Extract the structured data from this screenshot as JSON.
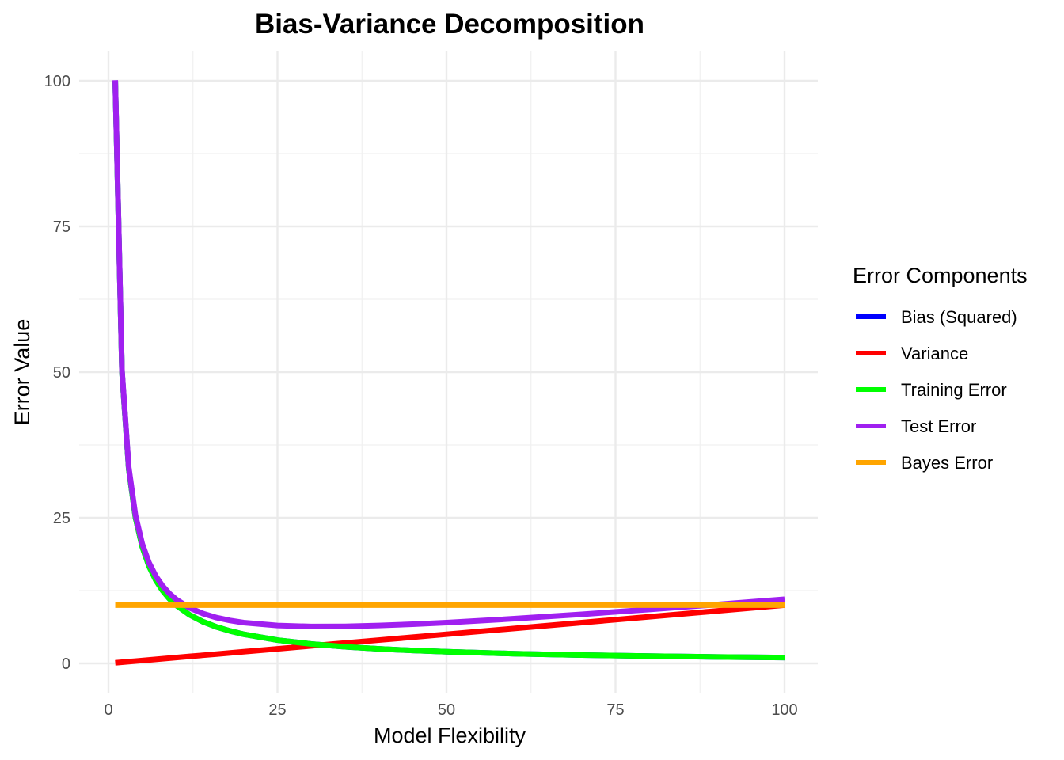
{
  "chart_data": {
    "type": "line",
    "title": "Bias-Variance Decomposition",
    "xlabel": "Model Flexibility",
    "ylabel": "Error Value",
    "xlim": [
      0,
      100
    ],
    "ylim": [
      0,
      100
    ],
    "x_ticks": [
      0,
      25,
      50,
      75,
      100
    ],
    "y_ticks": [
      0,
      25,
      50,
      75,
      100
    ],
    "grid": true,
    "legend": {
      "title": "Error Components",
      "placement": "right"
    },
    "x": [
      1,
      2,
      3,
      4,
      5,
      6,
      7,
      8,
      9,
      10,
      12,
      14,
      16,
      18,
      20,
      25,
      30,
      35,
      40,
      45,
      50,
      60,
      70,
      80,
      90,
      100
    ],
    "series": [
      {
        "name": "Bias (Squared)",
        "color": "#0000ff",
        "values": [
          100,
          50,
          33.33,
          25,
          20,
          16.67,
          14.29,
          12.5,
          11.11,
          10,
          8.33,
          7.14,
          6.25,
          5.56,
          5,
          4,
          3.33,
          2.86,
          2.5,
          2.22,
          2,
          1.67,
          1.43,
          1.25,
          1.11,
          1
        ]
      },
      {
        "name": "Variance",
        "color": "#ff0000",
        "values": [
          0.1,
          0.2,
          0.3,
          0.4,
          0.5,
          0.6,
          0.7,
          0.8,
          0.9,
          1,
          1.2,
          1.4,
          1.6,
          1.8,
          2,
          2.5,
          3,
          3.5,
          4,
          4.5,
          5,
          6,
          7,
          8,
          9,
          10
        ]
      },
      {
        "name": "Training Error",
        "color": "#00ff00",
        "values": [
          100,
          50,
          33.33,
          25,
          20,
          16.67,
          14.29,
          12.5,
          11.11,
          10,
          8.33,
          7.14,
          6.25,
          5.56,
          5,
          4,
          3.33,
          2.86,
          2.5,
          2.22,
          2,
          1.67,
          1.43,
          1.25,
          1.11,
          1
        ]
      },
      {
        "name": "Test Error",
        "color": "#a020f0",
        "values": [
          100.1,
          50.2,
          33.63,
          25.4,
          20.5,
          17.27,
          14.99,
          13.3,
          12.01,
          11,
          9.53,
          8.54,
          7.85,
          7.36,
          7,
          6.5,
          6.33,
          6.36,
          6.5,
          6.72,
          7,
          7.67,
          8.43,
          9.25,
          10.11,
          11
        ]
      },
      {
        "name": "Bayes Error",
        "color": "#ffa500",
        "values": [
          10,
          10,
          10,
          10,
          10,
          10,
          10,
          10,
          10,
          10,
          10,
          10,
          10,
          10,
          10,
          10,
          10,
          10,
          10,
          10,
          10,
          10,
          10,
          10,
          10,
          10
        ]
      }
    ]
  }
}
